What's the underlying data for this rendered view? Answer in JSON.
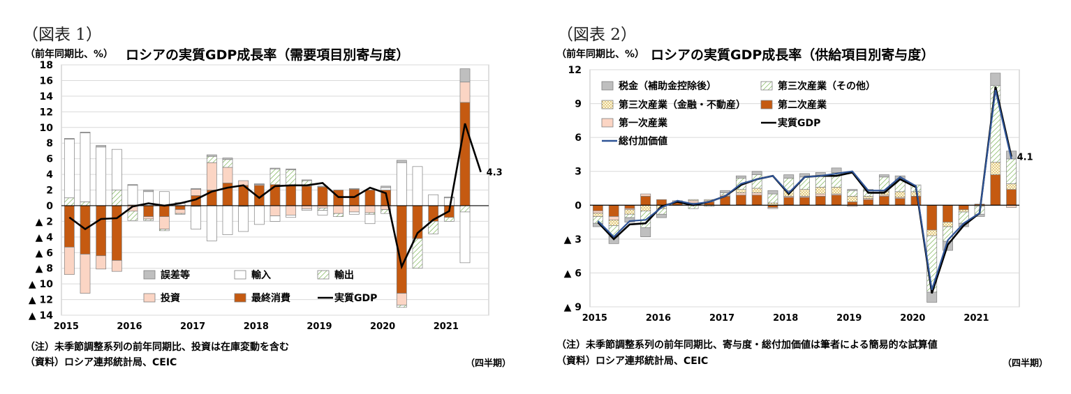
{
  "chart_data": [
    {
      "type": "bar",
      "panel_label": "（図表 1）",
      "unit_label": "（前年同期比、%）",
      "title": "ロシアの実質GDP成長率（需要項目別寄与度）",
      "ylim": [
        -14,
        18
      ],
      "ytick_values": [
        18,
        16,
        14,
        12,
        10,
        8,
        6,
        4,
        2,
        0,
        -2,
        -4,
        -6,
        -8,
        -10,
        -12,
        -14
      ],
      "ytick_labels": [
        "18",
        "16",
        "14",
        "12",
        "10",
        "8",
        "6",
        "4",
        "2",
        "0",
        "▲ 2",
        "▲ 4",
        "▲ 6",
        "▲ 8",
        "▲ 10",
        "▲ 12",
        "▲ 14"
      ],
      "year_labels": [
        "2015",
        "2016",
        "2017",
        "2018",
        "2019",
        "2020",
        "2021"
      ],
      "x_unit": "（四半期）",
      "last_value_label": "4.3",
      "series": [
        {
          "name": "最終消費",
          "color": "#c55a11",
          "values": [
            -5.3,
            -6.2,
            -6.4,
            -7.0,
            0.1,
            -1.4,
            -1.4,
            -0.5,
            1.3,
            2.0,
            2.9,
            2.6,
            2.6,
            2.7,
            2.6,
            2.5,
            2.4,
            2.0,
            2.1,
            2.0,
            2.0,
            -11.2,
            -4.2,
            -2.0,
            -1.5,
            13.2,
            0
          ]
        },
        {
          "name": "投資",
          "color": "#fbd5c4",
          "values": [
            -3.5,
            -5.0,
            -1.7,
            -1.4,
            -0.7,
            -0.3,
            -1.6,
            -0.5,
            0.8,
            3.5,
            2.0,
            0.6,
            0.1,
            -1.3,
            -1.2,
            -0.4,
            -0.3,
            -1.0,
            -0.8,
            -0.9,
            -0.5,
            -1.5,
            0.0,
            0.0,
            0.0,
            2.6,
            0
          ]
        },
        {
          "name": "輸出",
          "color": "hatch",
          "values": [
            1.0,
            0.5,
            0.0,
            2.0,
            -1.2,
            -0.2,
            -0.2,
            -0.1,
            -0.1,
            0.8,
            1.0,
            -0.1,
            0.0,
            2.0,
            2.0,
            0.7,
            -0.3,
            -0.4,
            0.0,
            -0.2,
            -0.5,
            -0.3,
            -3.8,
            -1.6,
            -0.5,
            -0.8,
            0
          ]
        },
        {
          "name": "輸入",
          "color": "#ffffff",
          "values": [
            7.5,
            8.8,
            7.5,
            5.2,
            2.5,
            1.8,
            1.8,
            0.3,
            -2.9,
            -4.5,
            -3.7,
            -3.2,
            -2.4,
            -0.7,
            -0.3,
            -0.2,
            -0.6,
            0.0,
            -0.3,
            -1.2,
            0.3,
            5.5,
            5.0,
            1.4,
            1.0,
            -6.5,
            0
          ]
        },
        {
          "name": "誤差等",
          "color": "#bfbfbf",
          "values": [
            0.1,
            0.1,
            0.2,
            0.0,
            0.1,
            0.2,
            0.0,
            0.1,
            0.1,
            0.2,
            0.2,
            0.0,
            0.1,
            0.1,
            0.1,
            0.1,
            0.1,
            0.0,
            0.1,
            0.0,
            0.2,
            0.3,
            0.0,
            0.0,
            0.1,
            1.7,
            0
          ]
        },
        {
          "name": "実質GDP",
          "color": "#000000",
          "type": "line",
          "values": [
            -1.5,
            -3.0,
            -1.7,
            -1.6,
            -0.1,
            0.3,
            0.0,
            0.3,
            0.8,
            1.8,
            2.3,
            2.6,
            1.0,
            2.5,
            2.6,
            2.6,
            2.9,
            1.1,
            1.1,
            2.3,
            1.6,
            -7.8,
            -3.5,
            -1.8,
            -0.7,
            10.5,
            4.3
          ]
        }
      ],
      "legend": [
        {
          "name": "誤差等",
          "swatch": "gray"
        },
        {
          "name": "輸入",
          "swatch": "white"
        },
        {
          "name": "輸出",
          "swatch": "hatch"
        },
        {
          "name": "投資",
          "swatch": "pink"
        },
        {
          "name": "最終消費",
          "swatch": "brown"
        },
        {
          "name": "実質GDP",
          "swatch": "line-black"
        }
      ],
      "notes": [
        "（注）未季節調整系列の前年同期比、投資は在庫変動を含む",
        "（資料）ロシア連邦統計局、CEIC"
      ]
    },
    {
      "type": "bar",
      "panel_label": "（図表 2）",
      "unit_label": "（前年同期比、%）",
      "title": "ロシアの実質GDP成長率（供給項目別寄与度）",
      "ylim": [
        -9,
        12
      ],
      "ytick_values": [
        12,
        9,
        6,
        3,
        0,
        -3,
        -6,
        -9
      ],
      "ytick_labels": [
        "12",
        "9",
        "6",
        "3",
        "0",
        "▲ 3",
        "▲ 6",
        "▲ 9"
      ],
      "year_labels": [
        "2015",
        "2016",
        "2017",
        "2018",
        "2019",
        "2020",
        "2021"
      ],
      "x_unit": "（四半期）",
      "last_value_label": "4.1",
      "series": [
        {
          "name": "第二次産業",
          "color": "#c55a11",
          "values": [
            -0.5,
            -1.0,
            -0.3,
            0.8,
            0.5,
            0.3,
            0.2,
            0.3,
            0.8,
            0.9,
            0.9,
            -0.2,
            0.7,
            0.7,
            0.8,
            0.9,
            0.3,
            0.5,
            0.8,
            0.6,
            0.8,
            -2.2,
            -1.5,
            -0.4,
            0.1,
            2.7,
            1.4
          ]
        },
        {
          "name": "第一次産業",
          "color": "#fbd5c4",
          "values": [
            -0.2,
            -0.3,
            -0.1,
            0.2,
            0.0,
            0.1,
            0.2,
            0.1,
            0.1,
            0.2,
            0.2,
            -0.1,
            0.1,
            0.1,
            0.2,
            0.1,
            -0.1,
            0.1,
            0.1,
            0.1,
            0.0,
            0.0,
            0.0,
            0.0,
            0.0,
            0.0,
            -0.2
          ]
        },
        {
          "name": "第三次産業（金融・不動産）",
          "color": "dot",
          "values": [
            -0.3,
            -0.5,
            -0.4,
            -0.5,
            -0.3,
            0.0,
            0.1,
            0.1,
            0.0,
            0.3,
            0.4,
            0.2,
            0.5,
            0.6,
            0.6,
            0.6,
            0.5,
            0.2,
            0.3,
            0.5,
            0.4,
            -0.5,
            -0.4,
            -0.2,
            -0.1,
            1.1,
            0.5
          ]
        },
        {
          "name": "第三次産業（その他）",
          "color": "hatch",
          "values": [
            -0.6,
            -1.0,
            -0.3,
            -1.5,
            -0.5,
            0.0,
            -0.3,
            -0.1,
            0.2,
            1.0,
            1.2,
            0.8,
            1.1,
            1.1,
            1.0,
            1.3,
            0.5,
            0.5,
            1.3,
            1.1,
            0.6,
            -5.0,
            -1.3,
            -1.0,
            -0.7,
            6.8,
            2.2
          ]
        },
        {
          "name": "税金（補助金控除後）",
          "color": "#bfbfbf",
          "values": [
            -0.3,
            -0.6,
            -0.4,
            -0.8,
            -0.3,
            0.0,
            0.0,
            0.0,
            0.2,
            0.2,
            0.3,
            0.3,
            0.3,
            0.3,
            0.3,
            0.4,
            0.1,
            0.1,
            0.2,
            0.3,
            0.0,
            -0.9,
            -0.8,
            -0.3,
            -0.2,
            1.1,
            0.7
          ]
        },
        {
          "name": "実質GDP",
          "color": "#000000",
          "type": "line",
          "values": [
            -1.5,
            -3.0,
            -1.7,
            -1.6,
            -0.1,
            0.3,
            0.0,
            0.3,
            0.8,
            1.8,
            2.3,
            2.6,
            1.0,
            2.5,
            2.6,
            2.6,
            2.9,
            1.1,
            1.1,
            2.3,
            1.6,
            -7.8,
            -3.5,
            -1.8,
            -0.7,
            10.5,
            4.3
          ]
        },
        {
          "name": "総付加価値",
          "color": "#2f5496",
          "type": "line",
          "values": [
            -1.4,
            -2.8,
            -1.4,
            -1.3,
            -0.2,
            0.4,
            0.1,
            0.3,
            0.8,
            1.9,
            2.3,
            2.6,
            1.1,
            2.5,
            2.6,
            2.8,
            3.0,
            1.3,
            1.3,
            2.5,
            1.7,
            -7.5,
            -3.1,
            -1.6,
            -0.7,
            10.2,
            4.1
          ]
        }
      ],
      "legend": [
        {
          "name": "税金（補助金控除後）",
          "swatch": "gray"
        },
        {
          "name": "第三次産業（その他）",
          "swatch": "hatch"
        },
        {
          "name": "第三次産業（金融・不動産）",
          "swatch": "dot"
        },
        {
          "name": "第二次産業",
          "swatch": "brown"
        },
        {
          "name": "第一次産業",
          "swatch": "pink"
        },
        {
          "name": "実質GDP",
          "swatch": "line-black"
        },
        {
          "name": "総付加価値",
          "swatch": "line-blue"
        }
      ],
      "notes": [
        "（注）未季節調整系列の前年同期比、寄与度・総付加価値は筆者による簡易的な試算値",
        "（資料）ロシア連邦統計局、CEIC"
      ]
    }
  ]
}
